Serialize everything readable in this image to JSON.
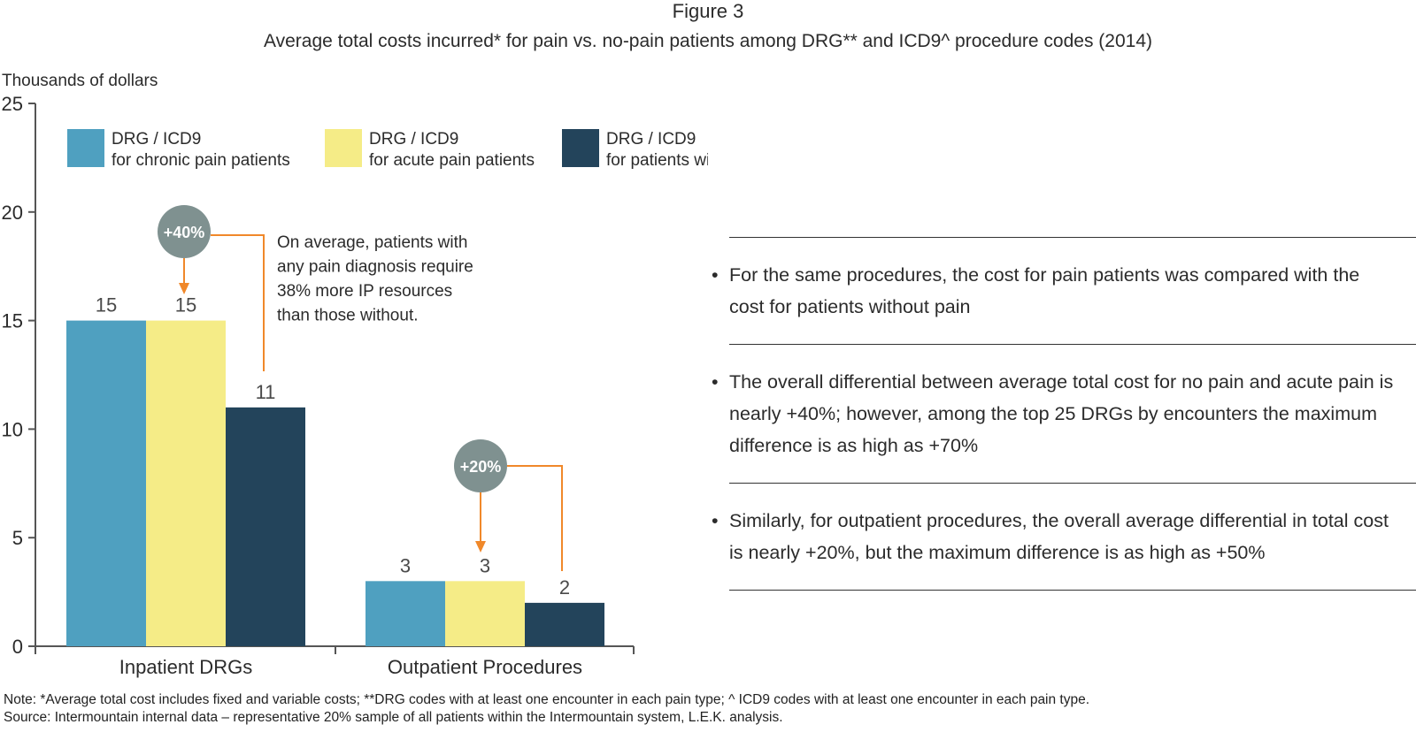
{
  "figure_label": "Figure 3",
  "figure_title": "Average total costs incurred* for pain vs. no-pain patients among DRG** and ICD9^ procedure codes (2014)",
  "chart_data": {
    "type": "bar",
    "ylabel": "Thousands of dollars",
    "ylim": [
      0,
      25
    ],
    "yticks": [
      0,
      5,
      10,
      15,
      20,
      25
    ],
    "categories": [
      "Inpatient DRGs",
      "Outpatient Procedures"
    ],
    "series": [
      {
        "name_line1": "DRG / ICD9",
        "name_line2": "for chronic pain patients",
        "color": "#4fa0c0",
        "values": [
          15,
          3
        ]
      },
      {
        "name_line1": "DRG / ICD9",
        "name_line2": "for acute pain patients",
        "color": "#f5ec87",
        "values": [
          15,
          3
        ]
      },
      {
        "name_line1": "DRG / ICD9",
        "name_line2": "for patients without pain",
        "color": "#23445b",
        "values": [
          11,
          2
        ]
      }
    ],
    "data_labels": [
      [
        "15",
        "15",
        "11"
      ],
      [
        "3",
        "3",
        "2"
      ]
    ],
    "legend_position": "top-left",
    "grid": false,
    "annotations": {
      "inpatient_badge": "+40%",
      "outpatient_badge": "+20%",
      "callout_lines": [
        "On average, patients with",
        "any pain diagnosis require",
        "38% more IP resources",
        "than those without."
      ],
      "badge_color": "#7f9190",
      "arrow_color": "#f0882a"
    }
  },
  "bullets": [
    "For the same procedures, the cost for pain patients was compared with the cost for patients without pain",
    "The overall differential between average total cost for no pain and acute pain is nearly +40%; however, among the top 25 DRGs by encounters the maximum difference is as high as +70%",
    "Similarly, for outpatient procedures, the overall average differential in total cost is nearly +20%, but the maximum difference is as high as +50%"
  ],
  "bullet_symbol": "•",
  "notes": {
    "note": "Note: *Average total cost includes fixed and variable costs; **DRG codes with at least one encounter in each pain type; ^ ICD9 codes with at least one encounter in each pain type.",
    "source": "Source: Intermountain internal data – representative 20% sample of all patients within the Intermountain system, L.E.K. analysis."
  }
}
